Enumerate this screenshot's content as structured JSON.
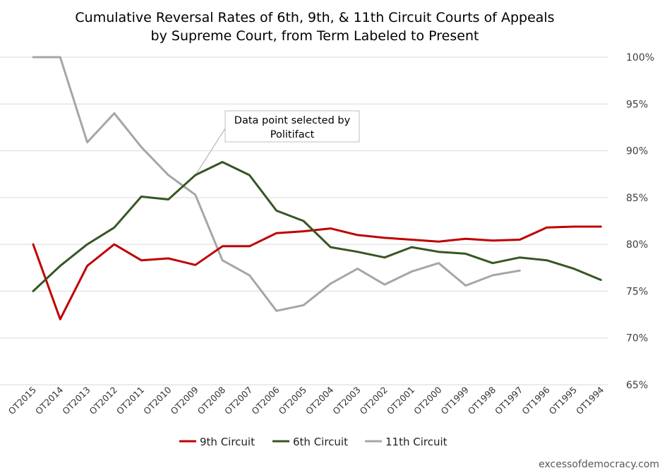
{
  "chart_data": {
    "type": "line",
    "title_line1": "Cumulative Reversal Rates of 6th, 9th, & 11th Circuit Courts of Appeals",
    "title_line2": "by Supreme Court, from Term Labeled to Present",
    "categories": [
      "OT2015",
      "OT2014",
      "OT2013",
      "OT2012",
      "OT2011",
      "OT2010",
      "OT2009",
      "OT2008",
      "OT2007",
      "OT2006",
      "OT2005",
      "OT2004",
      "OT2003",
      "OT2002",
      "OT2001",
      "OT2000",
      "OT1999",
      "OT1998",
      "OT1997",
      "OT1996",
      "OT1995",
      "OT1994"
    ],
    "y_ticks": [
      "100%",
      "95%",
      "90%",
      "85%",
      "80%",
      "75%",
      "70%",
      "65%"
    ],
    "y_tick_values": [
      100,
      95,
      90,
      85,
      80,
      75,
      70,
      65
    ],
    "ylim": [
      65,
      100
    ],
    "y_axis_side": "right",
    "grid": true,
    "legend_position": "bottom",
    "series": [
      {
        "name": "9th Circuit",
        "color": "#c00000",
        "values": [
          80.0,
          72.0,
          77.7,
          80.0,
          78.3,
          78.5,
          77.8,
          79.8,
          79.8,
          81.2,
          81.4,
          81.7,
          81.0,
          80.7,
          80.5,
          80.3,
          80.6,
          80.4,
          80.5,
          81.8,
          81.9,
          81.9
        ]
      },
      {
        "name": "6th Circuit",
        "color": "#375623",
        "values": [
          75.0,
          77.7,
          80.0,
          81.8,
          85.1,
          84.8,
          87.4,
          88.8,
          87.4,
          83.6,
          82.5,
          79.7,
          79.2,
          78.6,
          79.7,
          79.2,
          79.0,
          78.0,
          78.6,
          78.3,
          77.4,
          76.2
        ]
      },
      {
        "name": "11th Circuit",
        "color": "#a6a6a6",
        "values": [
          100.0,
          100.0,
          90.9,
          94.0,
          90.4,
          87.4,
          85.3,
          78.3,
          76.7,
          72.9,
          73.5,
          75.8,
          77.4,
          75.7,
          77.1,
          78.0,
          75.6,
          76.7,
          77.2,
          null,
          null,
          null
        ]
      }
    ],
    "annotation": {
      "line1": "Data point selected by",
      "line2": "Politifact",
      "points_to_category": "OT2009",
      "points_to_series": "6th Circuit"
    }
  },
  "footer": {
    "credit": "excessofdemocracy.com"
  }
}
